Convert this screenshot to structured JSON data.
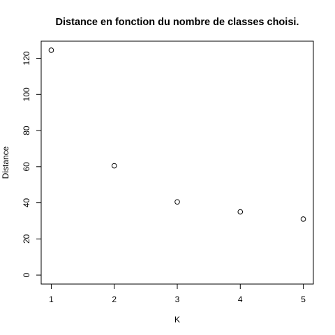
{
  "chart_data": {
    "type": "scatter",
    "title": "Distance en fonction du nombre de classes choisi.",
    "xlabel": "K",
    "ylabel": "Distance",
    "x": [
      1,
      2,
      3,
      4,
      5
    ],
    "y": [
      124.5,
      60.5,
      40.5,
      35,
      31
    ],
    "xlim": [
      0.84,
      5.16
    ],
    "ylim": [
      -4.98,
      129.48
    ],
    "xticks": [
      "1",
      "2",
      "3",
      "4",
      "5"
    ],
    "yticks": [
      "0",
      "20",
      "40",
      "60",
      "80",
      "100",
      "120"
    ],
    "grid": false,
    "marker": "open-circle",
    "colors": {
      "marker": "#000000",
      "axis": "#000000",
      "background": "#ffffff"
    }
  }
}
